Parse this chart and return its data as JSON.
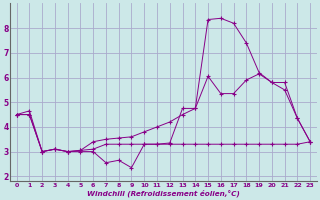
{
  "xlabel": "Windchill (Refroidissement éolien,°C)",
  "bg_color": "#cce8e8",
  "grid_color": "#aaaacc",
  "line_color": "#880088",
  "spine_color": "#666666",
  "xlim": [
    -0.5,
    23.5
  ],
  "ylim": [
    1.8,
    9.0
  ],
  "yticks": [
    2,
    3,
    4,
    5,
    6,
    7,
    8
  ],
  "xticks": [
    0,
    1,
    2,
    3,
    4,
    5,
    6,
    7,
    8,
    9,
    10,
    11,
    12,
    13,
    14,
    15,
    16,
    17,
    18,
    19,
    20,
    21,
    22,
    23
  ],
  "s1_x": [
    0,
    1,
    2,
    3,
    4,
    5,
    6,
    7,
    8,
    9,
    10,
    11,
    12,
    13,
    14,
    15,
    16,
    17,
    18,
    19,
    20,
    21,
    22,
    23
  ],
  "s1_y": [
    4.5,
    4.65,
    3.0,
    3.1,
    3.0,
    3.0,
    3.0,
    2.55,
    2.65,
    2.35,
    3.3,
    3.3,
    3.35,
    4.75,
    4.75,
    8.35,
    8.4,
    8.2,
    7.4,
    6.2,
    5.8,
    5.5,
    4.35,
    3.4
  ],
  "s2_x": [
    0,
    1,
    2,
    3,
    4,
    5,
    6,
    7,
    8,
    9,
    10,
    11,
    12,
    13,
    14,
    15,
    16,
    17,
    18,
    19,
    20,
    21,
    22,
    23
  ],
  "s2_y": [
    4.5,
    4.5,
    3.0,
    3.1,
    3.0,
    3.05,
    3.1,
    3.3,
    3.3,
    3.3,
    3.3,
    3.3,
    3.3,
    3.3,
    3.3,
    3.3,
    3.3,
    3.3,
    3.3,
    3.3,
    3.3,
    3.3,
    3.3,
    3.4
  ],
  "s3_x": [
    0,
    1,
    2,
    3,
    4,
    5,
    6,
    7,
    8,
    9,
    10,
    11,
    12,
    13,
    14,
    15,
    16,
    17,
    18,
    19,
    20,
    21,
    22,
    23
  ],
  "s3_y": [
    4.5,
    4.5,
    3.0,
    3.1,
    3.0,
    3.05,
    3.4,
    3.5,
    3.55,
    3.6,
    3.8,
    4.0,
    4.2,
    4.5,
    4.75,
    6.05,
    5.35,
    5.35,
    5.9,
    6.15,
    5.8,
    5.8,
    4.35,
    3.4
  ]
}
